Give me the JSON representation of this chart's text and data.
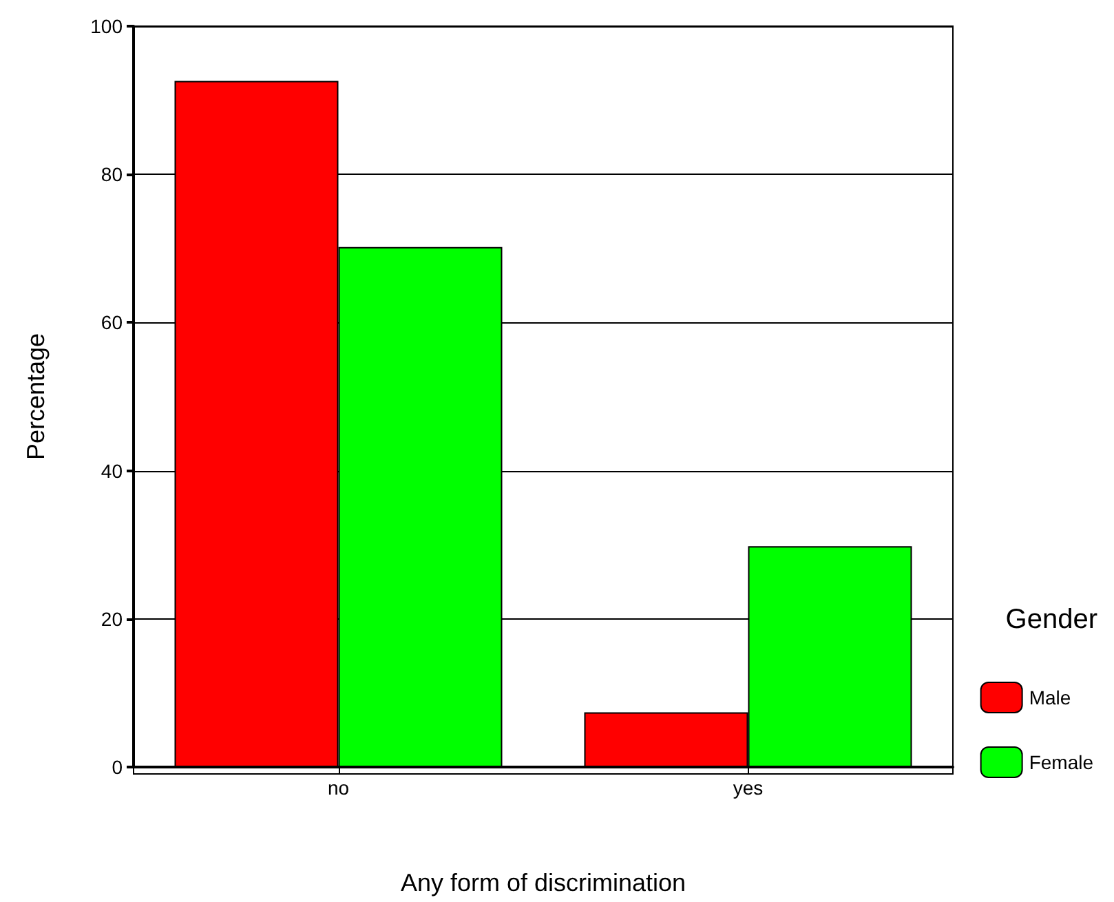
{
  "chart_data": {
    "type": "bar",
    "xlabel": "Any form of discrimination",
    "ylabel": "Percentage",
    "legend_title": "Gender",
    "categories": [
      "no",
      "yes"
    ],
    "series": [
      {
        "name": "Male",
        "color": "#ff0000",
        "values": [
          92.6,
          7.4
        ]
      },
      {
        "name": "Female",
        "color": "#00ff00",
        "values": [
          70.2,
          29.8
        ]
      }
    ],
    "ylim": [
      0,
      100
    ],
    "yticks": [
      0,
      20,
      40,
      60,
      80,
      100
    ],
    "grid": "y",
    "legend": "right"
  }
}
